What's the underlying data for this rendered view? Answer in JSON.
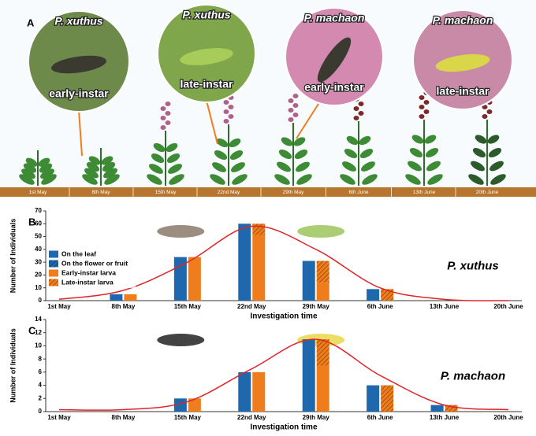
{
  "panel_a": {
    "label": "A",
    "insets": [
      {
        "species": "P. xuthus",
        "stage": "early-instar"
      },
      {
        "species": "P. xuthus",
        "stage": "late-instar"
      },
      {
        "species": "P. machaon",
        "stage": "early-instar"
      },
      {
        "species": "P. machaon",
        "stage": "late-instar"
      }
    ],
    "dates": [
      "1st May",
      "8th May",
      "15th May",
      "22nd May",
      "29th May",
      "6th  June",
      "13th June",
      "20th June"
    ]
  },
  "chart_data": [
    {
      "type": "bar",
      "panel_label": "B",
      "title": "P. xuthus",
      "xlabel": "Investigation time",
      "ylabel": "Number of Individuals",
      "categories": [
        "1st May",
        "8th May",
        "15th May",
        "22nd May",
        "29th May",
        "6th June",
        "13th June",
        "20th June"
      ],
      "ylim": [
        0,
        70
      ],
      "yticks": [
        0,
        10,
        20,
        30,
        40,
        50,
        60,
        70
      ],
      "legend": "left",
      "series": [
        {
          "name": "On the leaf",
          "color": "#1f68ad",
          "hatch": false,
          "stack": 0,
          "values": [
            0,
            5,
            34,
            60,
            31,
            9,
            0,
            0
          ]
        },
        {
          "name": "On the flower or fruit",
          "color": "#1f68ad",
          "hatch": true,
          "stack": 0,
          "values": [
            0,
            0,
            0,
            0,
            0,
            0,
            0,
            0
          ]
        },
        {
          "name": "Early-instar larva",
          "color": "#f07d1c",
          "hatch": false,
          "stack": 1,
          "values": [
            0,
            5,
            34,
            51,
            14,
            0,
            0,
            0
          ]
        },
        {
          "name": "Late-instar larva",
          "color": "#f07d1c",
          "hatch": true,
          "stack": 1,
          "values": [
            0,
            0,
            0,
            9,
            17,
            9,
            0,
            0
          ]
        }
      ],
      "fit": {
        "color": "#e0242a",
        "values": [
          1,
          8,
          30,
          58,
          40,
          10,
          1,
          0
        ]
      }
    },
    {
      "type": "bar",
      "panel_label": "C",
      "title": "P. machaon",
      "xlabel": "Investigation time",
      "ylabel": "Number of Individuals",
      "categories": [
        "1st May",
        "8th May",
        "15th May",
        "22nd May",
        "29th May",
        "6th June",
        "13th June",
        "20th June"
      ],
      "ylim": [
        0,
        14
      ],
      "yticks": [
        0,
        2,
        4,
        6,
        8,
        10,
        12,
        14
      ],
      "series": [
        {
          "name": "On the leaf",
          "color": "#1f68ad",
          "hatch": false,
          "stack": 0,
          "values": [
            0,
            0,
            2,
            6,
            11,
            4,
            1,
            0
          ]
        },
        {
          "name": "On the flower or fruit",
          "color": "#1f68ad",
          "hatch": true,
          "stack": 0,
          "values": [
            0,
            0,
            0,
            0,
            0,
            0,
            0,
            0
          ]
        },
        {
          "name": "Early-instar larva",
          "color": "#f07d1c",
          "hatch": false,
          "stack": 1,
          "values": [
            0,
            0,
            2,
            6,
            7,
            0,
            0,
            0
          ]
        },
        {
          "name": "Late-instar larva",
          "color": "#f07d1c",
          "hatch": true,
          "stack": 1,
          "values": [
            0,
            0,
            0,
            0,
            4,
            4,
            1,
            0
          ]
        }
      ],
      "fit": {
        "color": "#e0242a",
        "values": [
          0.3,
          0.3,
          1.5,
          6.5,
          11,
          5.5,
          1,
          0.3
        ]
      }
    }
  ]
}
